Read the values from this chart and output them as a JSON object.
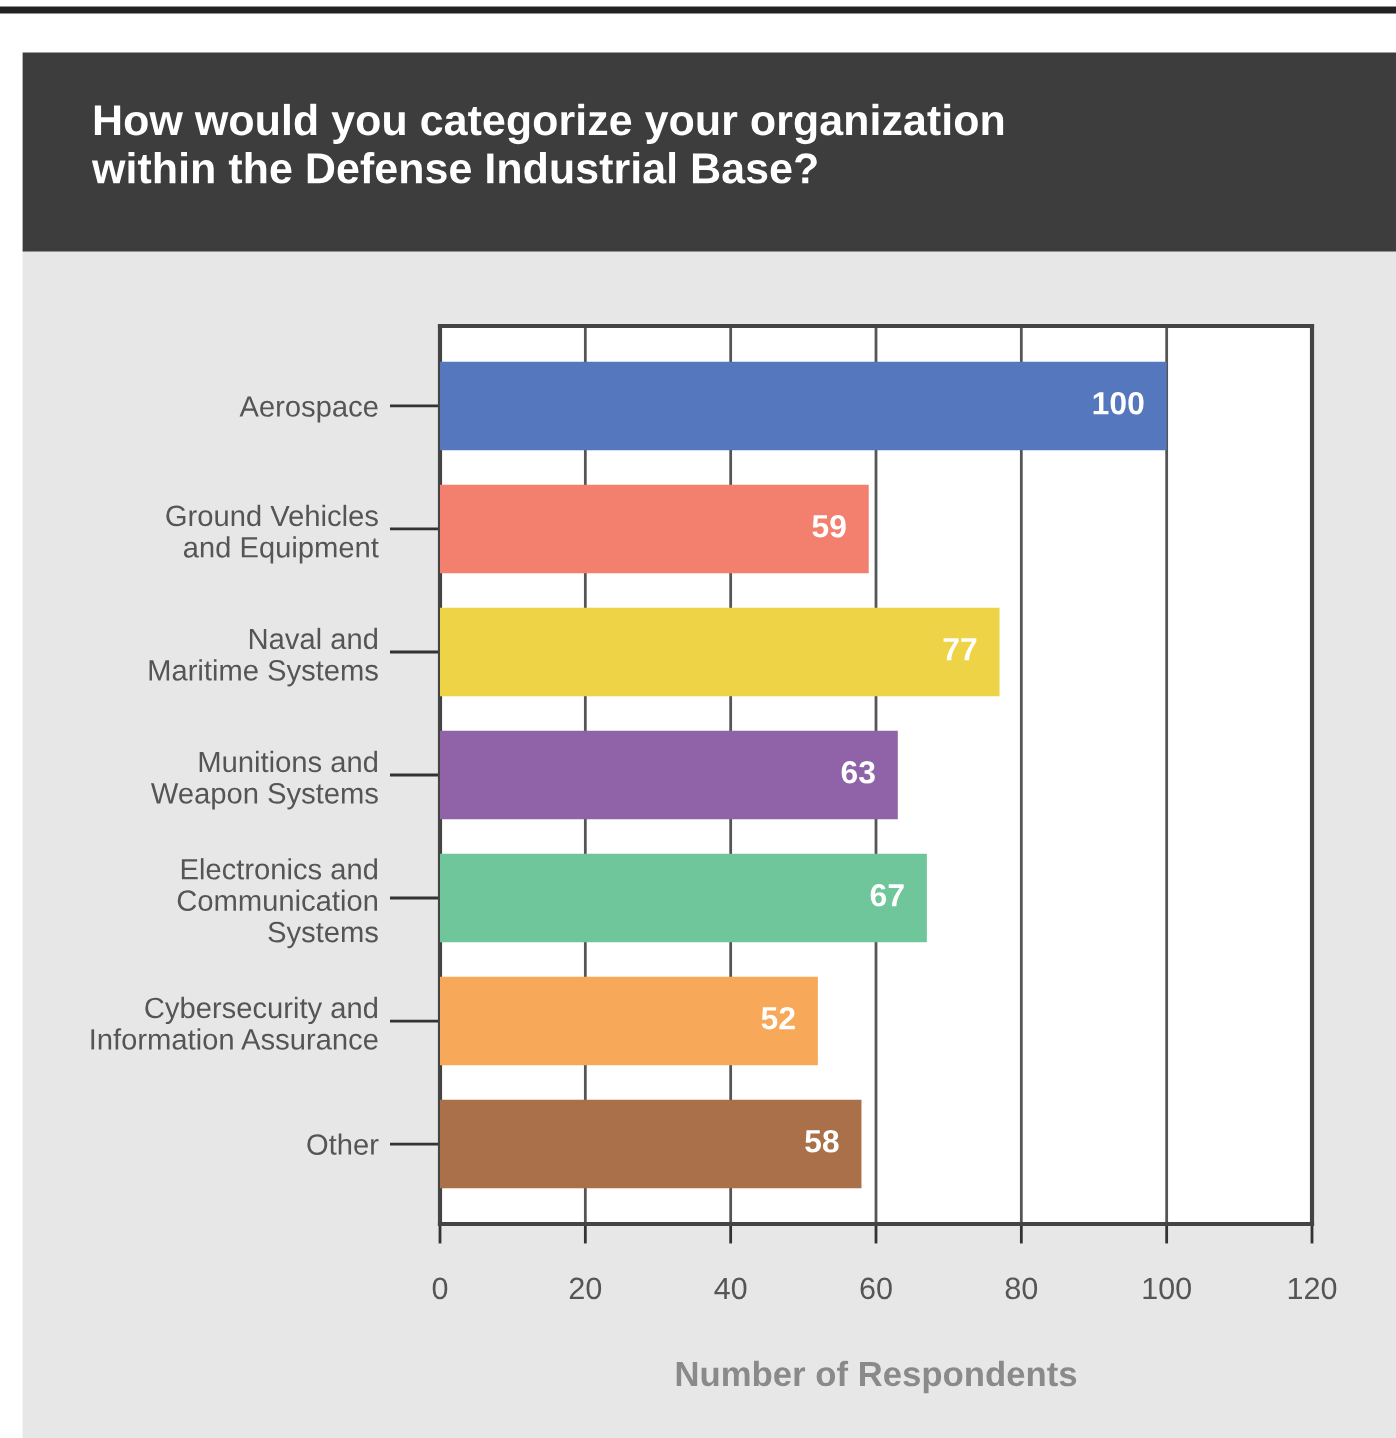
{
  "chart_data": {
    "type": "bar",
    "orientation": "horizontal",
    "title": "How would you categorize your organization\nwithin the Defense Industrial Base?",
    "xlabel": "Number of Respondents",
    "categories": [
      "Aerospace",
      "Ground Vehicles\nand Equipment",
      "Naval and\nMaritime Systems",
      "Munitions and\nWeapon Systems",
      "Electronics and\nCommunication\nSystems",
      "Cybersecurity and\nInformation Assurance",
      "Other"
    ],
    "values": [
      100,
      59,
      77,
      63,
      67,
      52,
      58
    ],
    "colors": [
      "#5577be",
      "#f3806f",
      "#eed346",
      "#9063a8",
      "#6fc69b",
      "#f7a858",
      "#aa7049"
    ],
    "xlim": [
      0,
      120
    ],
    "xticks": [
      0,
      20,
      40,
      60,
      80,
      100,
      120
    ],
    "grid": "x",
    "data_labels": true
  }
}
